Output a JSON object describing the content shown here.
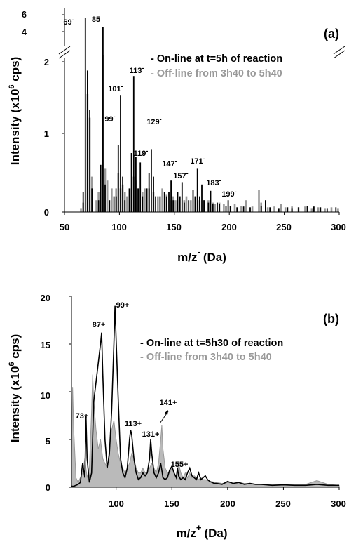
{
  "chart_data": [
    {
      "panel_label": "(a)",
      "type": "bar",
      "xlabel": "m/z",
      "xlabel_sup": "-",
      "xlabel_unit": "(Da)",
      "ylabel": "Intensity (x10",
      "ylabel_sup": "6",
      "ylabel_unit": " cps)",
      "xlim": [
        50,
        300
      ],
      "ylim": [
        0,
        2.2
      ],
      "y_break": true,
      "x_ticks": [
        "50",
        "100",
        "150",
        "200",
        "250",
        "300"
      ],
      "y_ticks": [
        "0",
        "1",
        "2"
      ],
      "y_ticks_upper": [
        "4",
        "6"
      ],
      "legend": [
        {
          "label": "- On-line at t=5h of reaction",
          "color": "#000000"
        },
        {
          "label": "- Off-line from 3h40 to 5h40",
          "color": "#999999"
        }
      ],
      "peak_labels": [
        "69",
        "85",
        "99",
        "101",
        "113",
        "119",
        "129",
        "147",
        "157",
        "171",
        "183",
        "199"
      ],
      "peak_label_sup": "-",
      "series": [
        {
          "name": "- On-line at t=5h of reaction",
          "color": "#000000",
          "points": [
            [
              67,
              0.25
            ],
            [
              69,
              5.6
            ],
            [
              71,
              1.8
            ],
            [
              73,
              1.3
            ],
            [
              75,
              0.3
            ],
            [
              81,
              0.15
            ],
            [
              83,
              0.6
            ],
            [
              85,
              4.5
            ],
            [
              87,
              0.35
            ],
            [
              91,
              0.15
            ],
            [
              95,
              0.2
            ],
            [
              97,
              0.2
            ],
            [
              99,
              0.85
            ],
            [
              101,
              1.48
            ],
            [
              103,
              0.45
            ],
            [
              105,
              0.15
            ],
            [
              109,
              0.3
            ],
            [
              111,
              0.75
            ],
            [
              113,
              1.73
            ],
            [
              115,
              0.7
            ],
            [
              117,
              0.3
            ],
            [
              119,
              0.63
            ],
            [
              121,
              0.2
            ],
            [
              125,
              0.3
            ],
            [
              127,
              0.5
            ],
            [
              129,
              0.8
            ],
            [
              131,
              0.45
            ],
            [
              133,
              0.2
            ],
            [
              137,
              0.2
            ],
            [
              141,
              0.25
            ],
            [
              143,
              0.2
            ],
            [
              145,
              0.25
            ],
            [
              147,
              0.4
            ],
            [
              149,
              0.15
            ],
            [
              153,
              0.25
            ],
            [
              155,
              0.2
            ],
            [
              157,
              0.38
            ],
            [
              159,
              0.12
            ],
            [
              163,
              0.15
            ],
            [
              167,
              0.28
            ],
            [
              169,
              0.2
            ],
            [
              171,
              0.55
            ],
            [
              173,
              0.2
            ],
            [
              175,
              0.35
            ],
            [
              177,
              0.15
            ],
            [
              181,
              0.12
            ],
            [
              183,
              0.27
            ],
            [
              185,
              0.1
            ],
            [
              189,
              0.12
            ],
            [
              191,
              0.1
            ],
            [
              197,
              0.08
            ],
            [
              199,
              0.15
            ],
            [
              201,
              0.08
            ],
            [
              207,
              0.06
            ],
            [
              213,
              0.07
            ],
            [
              219,
              0.06
            ],
            [
              229,
              0.08
            ],
            [
              233,
              0.15
            ],
            [
              237,
              0.06
            ],
            [
              245,
              0.05
            ],
            [
              253,
              0.06
            ],
            [
              257,
              0.05
            ],
            [
              263,
              0.06
            ],
            [
              271,
              0.08
            ],
            [
              277,
              0.07
            ],
            [
              283,
              0.06
            ],
            [
              289,
              0.05
            ],
            [
              297,
              0.06
            ]
          ]
        },
        {
          "name": "- Off-line from 3h40 to 5h40",
          "color": "#999999",
          "points": [
            [
              65,
              0.05
            ],
            [
              67,
              0.12
            ],
            [
              71,
              1.5
            ],
            [
              73,
              1.2
            ],
            [
              75,
              0.45
            ],
            [
              79,
              0.15
            ],
            [
              81,
              0.25
            ],
            [
              85,
              2.0
            ],
            [
              87,
              0.55
            ],
            [
              89,
              0.4
            ],
            [
              93,
              0.3
            ],
            [
              97,
              0.3
            ],
            [
              99,
              0.5
            ],
            [
              101,
              0.3
            ],
            [
              103,
              0.35
            ],
            [
              105,
              0.25
            ],
            [
              107,
              0.2
            ],
            [
              111,
              0.3
            ],
            [
              113,
              0.45
            ],
            [
              115,
              0.4
            ],
            [
              117,
              0.3
            ],
            [
              121,
              0.25
            ],
            [
              123,
              0.3
            ],
            [
              127,
              0.3
            ],
            [
              131,
              0.25
            ],
            [
              135,
              0.2
            ],
            [
              139,
              0.3
            ],
            [
              143,
              0.22
            ],
            [
              147,
              0.15
            ],
            [
              149,
              0.2
            ],
            [
              151,
              0.15
            ],
            [
              155,
              0.2
            ],
            [
              159,
              0.15
            ],
            [
              161,
              0.2
            ],
            [
              165,
              0.15
            ],
            [
              169,
              0.2
            ],
            [
              173,
              0.15
            ],
            [
              177,
              0.15
            ],
            [
              181,
              0.15
            ],
            [
              185,
              0.12
            ],
            [
              187,
              0.1
            ],
            [
              191,
              0.12
            ],
            [
              195,
              0.1
            ],
            [
              201,
              0.08
            ],
            [
              205,
              0.1
            ],
            [
              211,
              0.08
            ],
            [
              215,
              0.15
            ],
            [
              221,
              0.07
            ],
            [
              227,
              0.28
            ],
            [
              229,
              0.12
            ],
            [
              235,
              0.06
            ],
            [
              241,
              0.07
            ],
            [
              247,
              0.1
            ],
            [
              251,
              0.06
            ],
            [
              257,
              0.07
            ],
            [
              263,
              0.06
            ],
            [
              269,
              0.07
            ],
            [
              275,
              0.05
            ],
            [
              281,
              0.06
            ],
            [
              287,
              0.05
            ],
            [
              293,
              0.06
            ],
            [
              299,
              0.05
            ]
          ]
        }
      ]
    },
    {
      "panel_label": "(b)",
      "type": "line",
      "xlabel": "m/z",
      "xlabel_sup": "+",
      "xlabel_unit": "(Da)",
      "ylabel": "Intensity (x10",
      "ylabel_sup": "6",
      "ylabel_unit": " cps)",
      "xlim": [
        60,
        300
      ],
      "ylim": [
        0,
        20
      ],
      "x_ticks": [
        "100",
        "150",
        "200",
        "250",
        "300"
      ],
      "y_ticks": [
        "0",
        "5",
        "10",
        "15",
        "20"
      ],
      "legend": [
        {
          "label": "- On-line at t=5h30 of reaction",
          "color": "#000000"
        },
        {
          "label": "- Off-line from 3h40 to 5h40",
          "color": "#999999"
        }
      ],
      "peak_labels": [
        "73+",
        "87+",
        "99+",
        "113+",
        "131+",
        "141+",
        "155+"
      ],
      "series": [
        {
          "name": "- On-line at t=5h30 of reaction",
          "color": "#000000",
          "x": [
            60,
            62,
            64,
            66,
            68,
            70,
            72,
            73,
            74,
            76,
            78,
            80,
            82,
            84,
            86,
            87,
            88,
            90,
            92,
            94,
            96,
            98,
            99,
            100,
            102,
            104,
            106,
            108,
            110,
            112,
            113,
            114,
            116,
            118,
            120,
            122,
            124,
            126,
            128,
            130,
            131,
            132,
            134,
            136,
            138,
            140,
            141,
            142,
            144,
            146,
            148,
            150,
            152,
            154,
            155,
            156,
            158,
            160,
            162,
            164,
            166,
            168,
            170,
            172,
            174,
            176,
            178,
            180,
            182,
            184,
            186,
            188,
            190,
            195,
            200,
            205,
            210,
            215,
            220,
            225,
            230,
            240,
            250,
            260,
            270,
            280,
            290,
            300
          ],
          "y": [
            0.1,
            0.1,
            0.2,
            0.3,
            0.5,
            2.5,
            1.0,
            7.5,
            3.0,
            0.5,
            1.5,
            9.0,
            11.0,
            13.0,
            15.0,
            16.2,
            12.0,
            5.0,
            2.0,
            3.5,
            8.0,
            15.0,
            19.0,
            15.5,
            9.0,
            3.0,
            1.5,
            1.0,
            2.0,
            5.0,
            6.0,
            5.5,
            3.0,
            1.5,
            0.8,
            1.0,
            1.5,
            1.2,
            1.5,
            3.0,
            5.0,
            3.5,
            1.5,
            1.0,
            1.5,
            2.5,
            1.8,
            1.0,
            0.8,
            1.0,
            1.8,
            2.2,
            1.5,
            1.0,
            2.0,
            1.2,
            0.8,
            1.0,
            0.8,
            1.5,
            2.0,
            1.2,
            1.0,
            0.8,
            1.5,
            0.8,
            1.0,
            1.2,
            0.8,
            0.6,
            0.5,
            0.4,
            0.4,
            0.3,
            0.6,
            0.4,
            0.5,
            0.3,
            0.4,
            0.3,
            0.3,
            0.2,
            0.25,
            0.2,
            0.2,
            0.3,
            0.2,
            0.2
          ]
        },
        {
          "name": "- Off-line from 3h40 to 5h40",
          "color": "#999999",
          "x": [
            60,
            61,
            62,
            64,
            66,
            68,
            70,
            72,
            73,
            74,
            76,
            78,
            79,
            80,
            82,
            84,
            86,
            88,
            90,
            92,
            94,
            96,
            98,
            100,
            102,
            104,
            106,
            108,
            110,
            112,
            114,
            116,
            118,
            120,
            122,
            124,
            126,
            128,
            130,
            132,
            134,
            136,
            138,
            140,
            141,
            142,
            144,
            146,
            148,
            150,
            152,
            154,
            156,
            158,
            160,
            162,
            164,
            166,
            168,
            170,
            172,
            174,
            176,
            178,
            180,
            185,
            190,
            195,
            200,
            205,
            210,
            215,
            220,
            225,
            230,
            235,
            240,
            250,
            260,
            270,
            280,
            290,
            300
          ],
          "y": [
            3.0,
            10.5,
            6.0,
            1.0,
            0.5,
            1.0,
            1.5,
            3.0,
            2.0,
            1.0,
            2.0,
            8.0,
            11.8,
            9.0,
            6.0,
            4.0,
            5.0,
            3.0,
            2.5,
            2.0,
            4.0,
            6.0,
            7.0,
            5.0,
            3.5,
            2.5,
            2.0,
            1.5,
            2.0,
            2.5,
            3.5,
            3.0,
            2.0,
            1.5,
            1.5,
            2.0,
            1.5,
            1.5,
            2.0,
            2.5,
            2.0,
            1.5,
            2.5,
            5.0,
            6.5,
            4.0,
            2.0,
            1.5,
            1.5,
            2.0,
            1.5,
            1.0,
            2.5,
            1.5,
            1.0,
            1.5,
            1.0,
            1.5,
            1.0,
            1.2,
            1.0,
            0.8,
            1.0,
            0.8,
            0.8,
            0.6,
            0.5,
            0.4,
            0.5,
            0.4,
            0.5,
            0.4,
            0.4,
            0.3,
            0.3,
            0.3,
            0.3,
            0.3,
            0.3,
            0.3,
            0.7,
            0.3,
            0.2
          ]
        }
      ]
    }
  ]
}
